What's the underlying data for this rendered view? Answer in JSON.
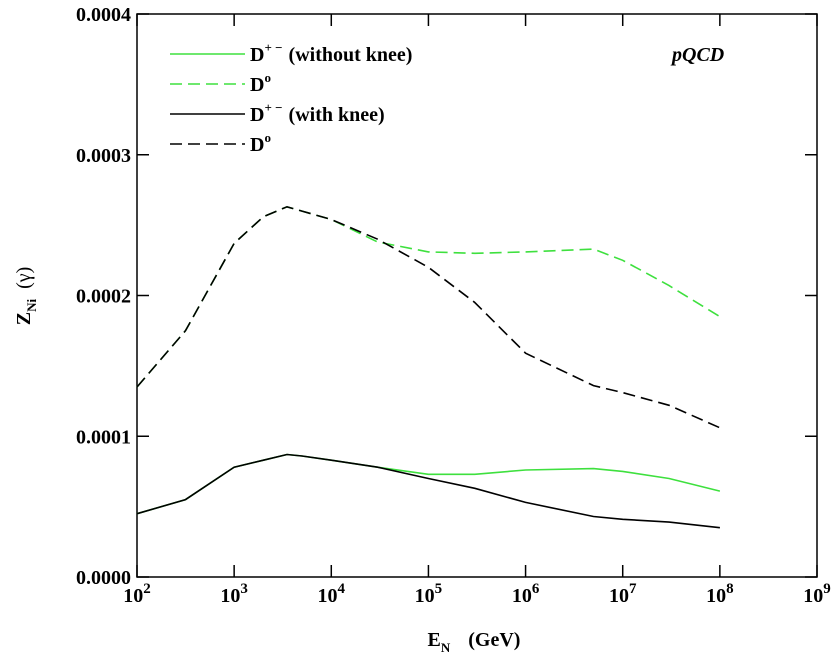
{
  "chart_data": {
    "type": "line",
    "x_label": {
      "main": "E",
      "sub": "N",
      "rest": "(GeV)"
    },
    "y_label": {
      "main": "Z",
      "sub": "Ni",
      "rest": "(γ)"
    },
    "annotation": "pQCD",
    "annotation_color": "#1a1adb",
    "log_x": true,
    "xlim": [
      100,
      1000000000
    ],
    "ylim": [
      0,
      0.0004
    ],
    "xticks": [
      {
        "value": 100,
        "label": "10",
        "exponent": "2"
      },
      {
        "value": 1000,
        "label": "10",
        "exponent": "3"
      },
      {
        "value": 10000,
        "label": "10",
        "exponent": "4"
      },
      {
        "value": 100000,
        "label": "10",
        "exponent": "5"
      },
      {
        "value": 1000000,
        "label": "10",
        "exponent": "6"
      },
      {
        "value": 10000000,
        "label": "10",
        "exponent": "7"
      },
      {
        "value": 100000000,
        "label": "10",
        "exponent": "8"
      },
      {
        "value": 1000000000,
        "label": "10",
        "exponent": "9"
      }
    ],
    "yticks": [
      {
        "value": 0,
        "label": "0.0000"
      },
      {
        "value": 0.0001,
        "label": "0.0001"
      },
      {
        "value": 0.0002,
        "label": "0.0002"
      },
      {
        "value": 0.0003,
        "label": "0.0003"
      },
      {
        "value": 0.0004,
        "label": "0.0004"
      }
    ],
    "x": [
      100,
      316,
      1000,
      2000,
      3500,
      5000,
      10000,
      30000,
      100000,
      300000,
      1000000,
      5000000,
      10000000,
      30000000,
      100000000
    ],
    "series": [
      {
        "name": "D",
        "name_sup": "+ −",
        "name_suffix": "(without knee)",
        "color": "#3ee03e",
        "dash": false,
        "values": [
          4.5e-05,
          5.5e-05,
          7.8e-05,
          8.3e-05,
          8.7e-05,
          8.6e-05,
          8.3e-05,
          7.8e-05,
          7.3e-05,
          7.3e-05,
          7.6e-05,
          7.7e-05,
          7.5e-05,
          7e-05,
          6.1e-05
        ]
      },
      {
        "name": "D",
        "name_sup": "o",
        "color": "#3ee03e",
        "dash": true,
        "values": [
          0.000135,
          0.000175,
          0.000237,
          0.000256,
          0.000263,
          0.00026,
          0.000254,
          0.000238,
          0.000231,
          0.00023,
          0.000231,
          0.000233,
          0.000225,
          0.000207,
          0.000185
        ]
      },
      {
        "name": "D",
        "name_sup": "+ −",
        "name_suffix": "(with knee)",
        "color": "#000000",
        "dash": false,
        "values": [
          4.5e-05,
          5.5e-05,
          7.8e-05,
          8.3e-05,
          8.7e-05,
          8.6e-05,
          8.3e-05,
          7.8e-05,
          7e-05,
          6.3e-05,
          5.3e-05,
          4.3e-05,
          4.1e-05,
          3.9e-05,
          3.5e-05
        ]
      },
      {
        "name": "D",
        "name_sup": "o",
        "color": "#000000",
        "dash": true,
        "values": [
          0.000135,
          0.000175,
          0.000237,
          0.000256,
          0.000263,
          0.00026,
          0.000254,
          0.00024,
          0.00022,
          0.000195,
          0.000159,
          0.000136,
          0.000131,
          0.000122,
          0.000106
        ]
      }
    ]
  }
}
